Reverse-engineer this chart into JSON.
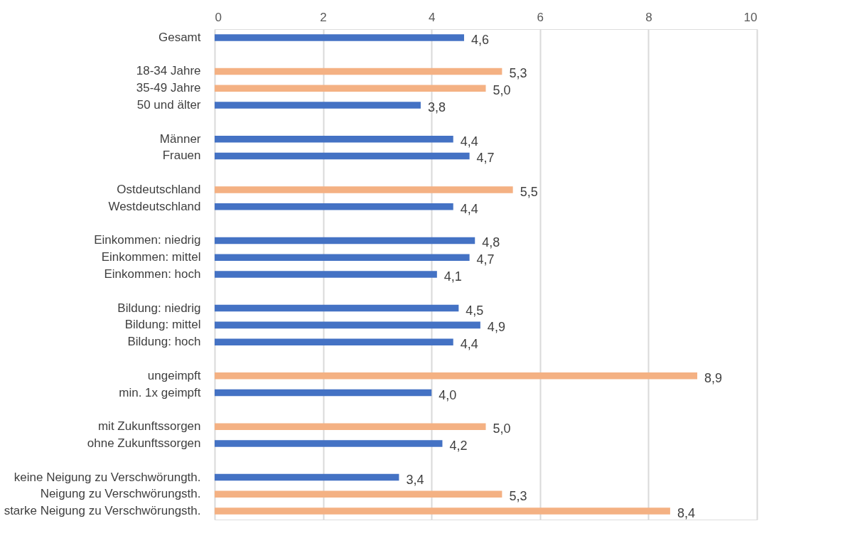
{
  "chart_data": {
    "type": "bar",
    "orientation": "horizontal",
    "categories": [
      "Gesamt",
      null,
      "18-34 Jahre",
      "35-49 Jahre",
      "50 und älter",
      null,
      "Männer",
      "Frauen",
      null,
      "Ostdeutschland",
      "Westdeutschland",
      null,
      "Einkommen: niedrig",
      "Einkommen: mittel",
      "Einkommen: hoch",
      null,
      "Bildung: niedrig",
      "Bildung: mittel ",
      "Bildung: hoch",
      null,
      "ungeimpft",
      "min. 1x geimpft",
      null,
      "mit Zukunftssorgen",
      "ohne Zukunftssorgen",
      null,
      "keine Neigung zu Verschwörungth.",
      "Neigung zu Verschwörungsth.",
      "starke Neigung zu Verschwörungsth."
    ],
    "values": [
      4.6,
      null,
      5.3,
      5.0,
      3.8,
      null,
      4.4,
      4.7,
      null,
      5.5,
      4.4,
      null,
      4.8,
      4.7,
      4.1,
      null,
      4.5,
      4.9,
      4.4,
      null,
      8.9,
      4.0,
      null,
      5.0,
      4.2,
      null,
      3.4,
      5.3,
      8.4
    ],
    "value_labels": [
      "4,6",
      null,
      "5,3",
      "5,0",
      "3,8",
      null,
      "4,4",
      "4,7",
      null,
      "5,5",
      "4,4",
      null,
      "4,8",
      "4,7",
      "4,1",
      null,
      "4,5",
      "4,9",
      "4,4",
      null,
      "8,9",
      "4,0",
      null,
      "5,0",
      "4,2",
      null,
      "3,4",
      "5,3",
      "8,4"
    ],
    "colors": [
      "#4472c4",
      null,
      "#f4b183",
      "#f4b183",
      "#4472c4",
      null,
      "#4472c4",
      "#4472c4",
      null,
      "#f4b183",
      "#4472c4",
      null,
      "#4472c4",
      "#4472c4",
      "#4472c4",
      null,
      "#4472c4",
      "#4472c4",
      "#4472c4",
      null,
      "#f4b183",
      "#4472c4",
      null,
      "#f4b183",
      "#4472c4",
      null,
      "#4472c4",
      "#f4b183",
      "#f4b183"
    ],
    "xlim": [
      0,
      10
    ],
    "xticks": [
      0,
      2,
      4,
      6,
      8,
      10
    ],
    "grid": "x"
  }
}
